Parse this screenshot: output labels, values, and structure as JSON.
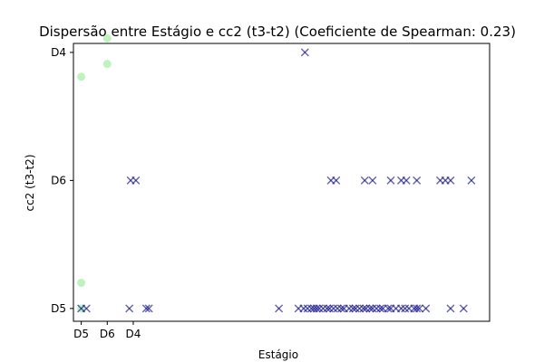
{
  "chart_data": {
    "type": "scatter",
    "title": "Dispersão entre Estágio e cc2 (t3-t2) (Coeficiente de Spearman: 0.23)",
    "xlabel": "Estágio",
    "ylabel": "cc2 (t3-t2)",
    "x_ticks": [
      "D5",
      "D6",
      "D4"
    ],
    "y_ticks": [
      "D5",
      "D6",
      "D4"
    ],
    "xlim": [
      -0.3,
      15.7
    ],
    "ylim": [
      -0.1,
      2.07
    ],
    "grid": false,
    "legend": "none",
    "series": [
      {
        "marker": "circle",
        "color": "#90ee90",
        "points": [
          [
            0.0,
            1.81
          ],
          [
            1.0,
            2.11
          ],
          [
            1.0,
            1.91
          ],
          [
            0.0,
            0.2
          ],
          [
            0.0,
            0.0
          ]
        ]
      },
      {
        "marker": "x",
        "color": "#00008b",
        "points": [
          [
            0.0,
            0.0
          ],
          [
            0.2,
            0.0
          ],
          [
            1.9,
            1.0
          ],
          [
            2.1,
            1.0
          ],
          [
            1.85,
            0.0
          ],
          [
            2.5,
            0.0
          ],
          [
            2.6,
            0.0
          ],
          [
            8.6,
            2.0
          ],
          [
            9.6,
            1.0
          ],
          [
            9.8,
            1.0
          ],
          [
            10.9,
            1.0
          ],
          [
            11.2,
            1.0
          ],
          [
            11.9,
            1.0
          ],
          [
            12.3,
            1.0
          ],
          [
            12.5,
            1.0
          ],
          [
            12.9,
            1.0
          ],
          [
            13.8,
            1.0
          ],
          [
            14.0,
            1.0
          ],
          [
            14.2,
            1.0
          ],
          [
            15.0,
            1.0
          ],
          [
            7.6,
            0.0
          ],
          [
            8.35,
            0.0
          ],
          [
            8.55,
            0.0
          ],
          [
            8.7,
            0.0
          ],
          [
            8.85,
            0.0
          ],
          [
            8.95,
            0.0
          ],
          [
            9.05,
            0.0
          ],
          [
            9.15,
            0.0
          ],
          [
            9.3,
            0.0
          ],
          [
            9.45,
            0.0
          ],
          [
            9.55,
            0.0
          ],
          [
            9.7,
            0.0
          ],
          [
            9.85,
            0.0
          ],
          [
            10.0,
            0.0
          ],
          [
            10.1,
            0.0
          ],
          [
            10.3,
            0.0
          ],
          [
            10.45,
            0.0
          ],
          [
            10.55,
            0.0
          ],
          [
            10.7,
            0.0
          ],
          [
            10.85,
            0.0
          ],
          [
            10.95,
            0.0
          ],
          [
            11.1,
            0.0
          ],
          [
            11.2,
            0.0
          ],
          [
            11.35,
            0.0
          ],
          [
            11.5,
            0.0
          ],
          [
            11.6,
            0.0
          ],
          [
            11.8,
            0.0
          ],
          [
            11.9,
            0.0
          ],
          [
            12.1,
            0.0
          ],
          [
            12.3,
            0.0
          ],
          [
            12.45,
            0.0
          ],
          [
            12.6,
            0.0
          ],
          [
            12.8,
            0.0
          ],
          [
            12.9,
            0.0
          ],
          [
            13.0,
            0.0
          ],
          [
            13.25,
            0.0
          ],
          [
            14.2,
            0.0
          ],
          [
            14.7,
            0.0
          ]
        ]
      }
    ]
  }
}
